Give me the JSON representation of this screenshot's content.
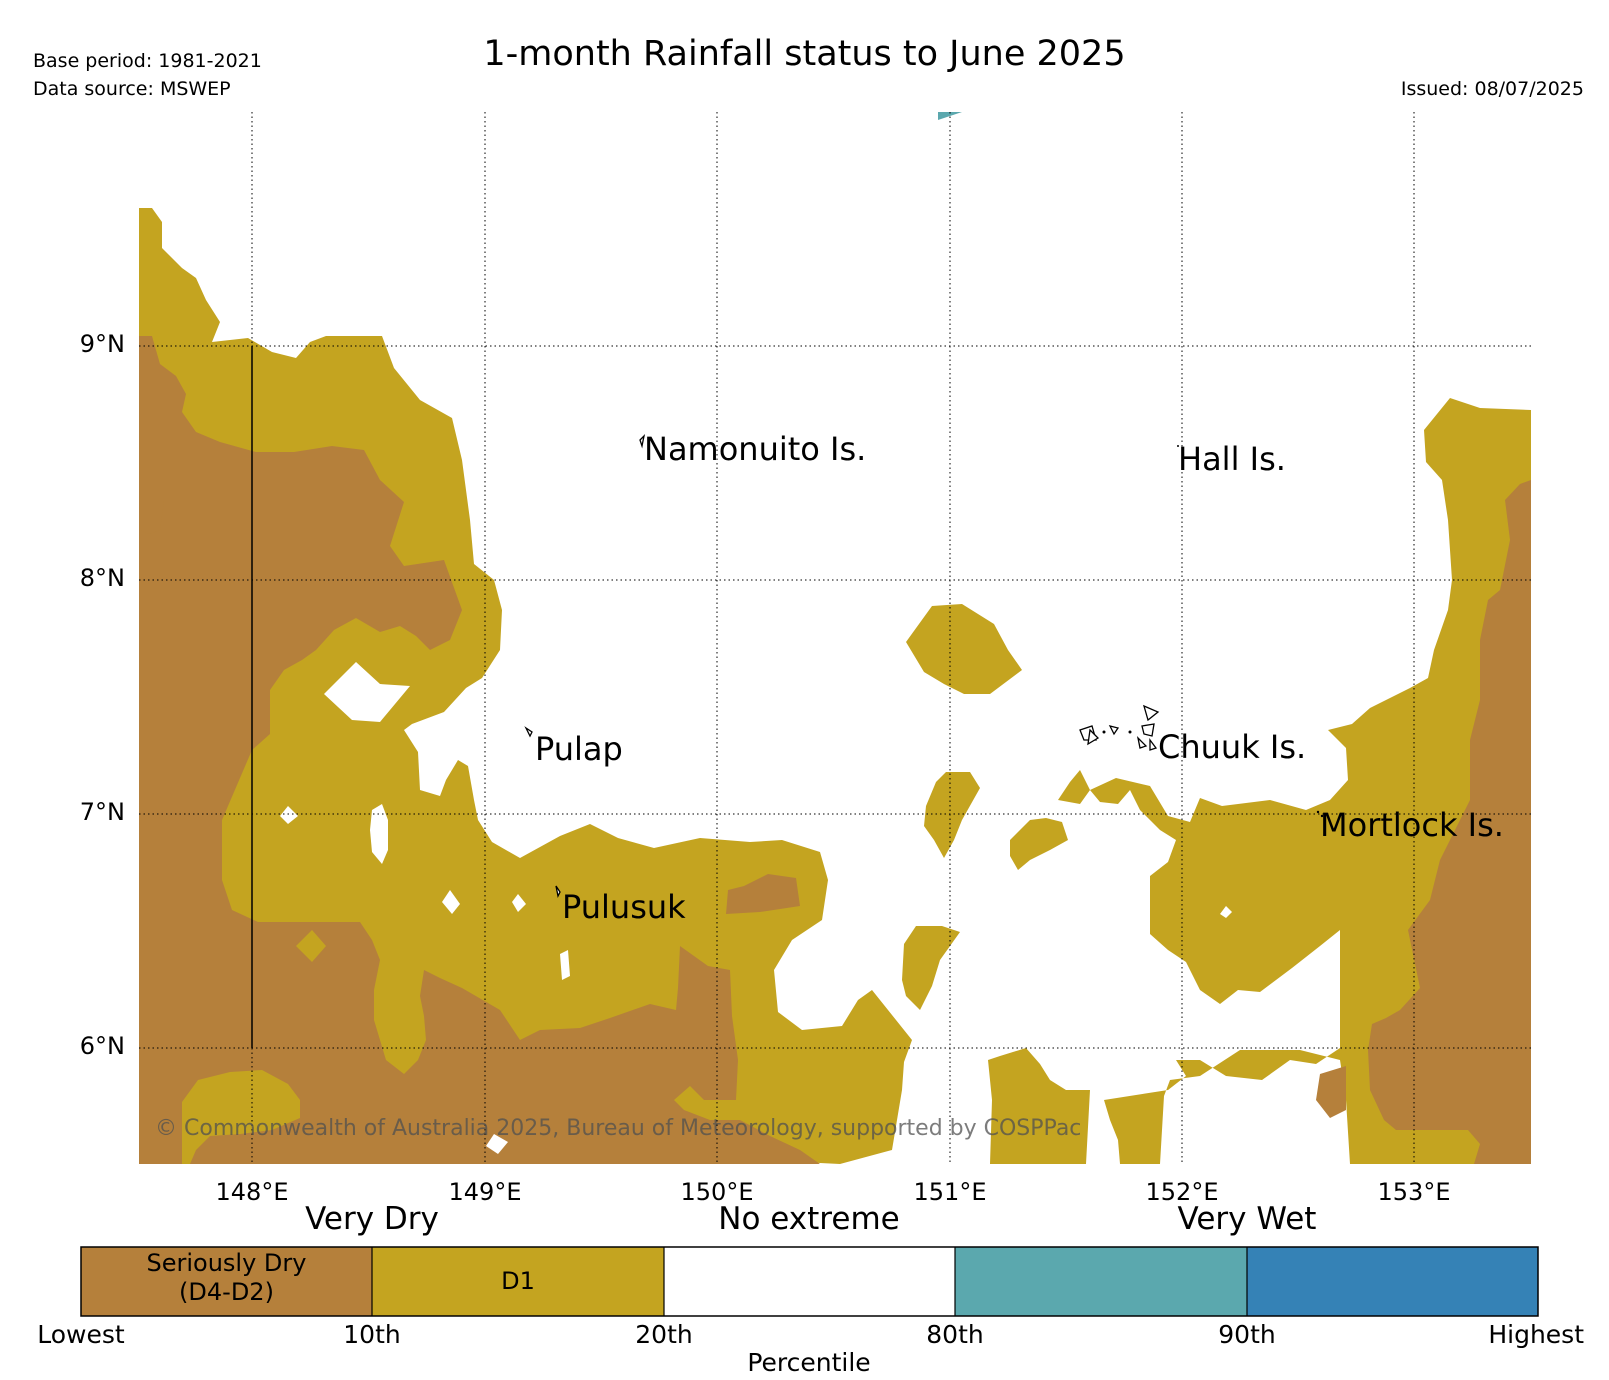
{
  "header": {
    "title": "1-month Rainfall status to June 2025",
    "base_period": "Base period: 1981-2021",
    "data_source": "Data source: MSWEP",
    "issued": "Issued: 08/07/2025"
  },
  "map": {
    "lon_labels": [
      "148°E",
      "149°E",
      "150°E",
      "151°E",
      "152°E",
      "153°E"
    ],
    "lat_labels": [
      "9°N",
      "8°N",
      "7°N",
      "6°N"
    ],
    "places": [
      "Namonuito Is.",
      "Hall Is.",
      "Pulap",
      "Chuuk Is.",
      "Mortlock Is.",
      "Pulusuk"
    ],
    "copyright": "© Commonwealth of Australia 2025, Bureau of Meteorology, supported by COSPPac",
    "colors": {
      "seriously_dry": "#b5803b",
      "d1": "#c4a420",
      "no_extreme": "#ffffff",
      "wet": "#5ba8ae",
      "very_wet": "#3582b6"
    }
  },
  "legend": {
    "categories": [
      "Very Dry",
      "No extreme",
      "Very Wet"
    ],
    "segments": [
      {
        "line1": "Seriously Dry",
        "line2": "(D4-D2)",
        "color": "#b5803b"
      },
      {
        "line1": "",
        "line2": "D1",
        "color": "#c4a420"
      },
      {
        "line1": "",
        "line2": "",
        "color": "#ffffff"
      },
      {
        "line1": "",
        "line2": "",
        "color": "#5ba8ae"
      },
      {
        "line1": "",
        "line2": "",
        "color": "#3582b6"
      }
    ],
    "ticks": [
      "Lowest",
      "10th",
      "20th",
      "80th",
      "90th",
      "Highest"
    ],
    "axis_title": "Percentile"
  }
}
